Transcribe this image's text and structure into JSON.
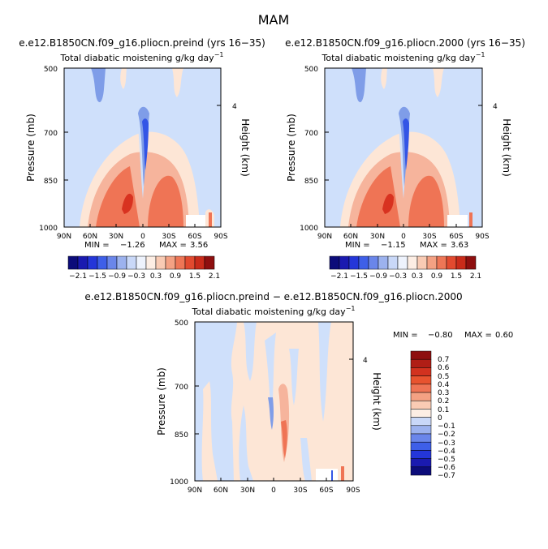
{
  "page_title": "MAM",
  "colors": {
    "neg3": "#0a1fa8",
    "neg2": "#3355e6",
    "neg1": "#7f9de8",
    "neg0": "#cfe0fb",
    "pos0": "#fde6d6",
    "pos1": "#f6b49c",
    "pos2": "#ef7455",
    "pos3": "#d83220"
  },
  "chart_data": [
    {
      "type": "heatmap",
      "id": "preind",
      "title": "e.e12.B1850CN.f09_g16.pliocn.preind (yrs 16−35)",
      "subtitle": "Total diabatic moistening",
      "units": "g/kg day",
      "units_exp": "−1",
      "ylabel": "Pressure (mb)",
      "ylabel_right": "Height (km)",
      "right_ticks": [
        "4"
      ],
      "y_ticks": [
        "500",
        "700",
        "850",
        "1000"
      ],
      "x_ticks": [
        "90N",
        "60N",
        "30N",
        "0",
        "30S",
        "60S",
        "90S"
      ],
      "min_label": "MIN =",
      "min_value": "−1.26",
      "max_label": "MAX =",
      "max_value": "3.56",
      "colorbar_labels": [
        "−2.1",
        "−1.5",
        "−0.9",
        "−0.3",
        "0.3",
        "0.9",
        "1.5",
        "2.1"
      ]
    },
    {
      "type": "heatmap",
      "id": "plio2000",
      "title": "e.e12.B1850CN.f09_g16.pliocn.2000 (yrs 16−35)",
      "subtitle": "Total diabatic moistening",
      "units": "g/kg day",
      "units_exp": "−1",
      "ylabel": "Pressure (mb)",
      "ylabel_right": "Height (km)",
      "right_ticks": [
        "4"
      ],
      "y_ticks": [
        "500",
        "700",
        "850",
        "1000"
      ],
      "x_ticks": [
        "90N",
        "60N",
        "30N",
        "0",
        "30S",
        "60S",
        "90S"
      ],
      "min_label": "MIN =",
      "min_value": "−1.15",
      "max_label": "MAX =",
      "max_value": "3.63",
      "colorbar_labels": [
        "−2.1",
        "−1.5",
        "−0.9",
        "−0.3",
        "0.3",
        "0.9",
        "1.5",
        "2.1"
      ]
    },
    {
      "type": "heatmap",
      "id": "diff",
      "title": "e.e12.B1850CN.f09_g16.pliocn.preind − e.e12.B1850CN.f09_g16.pliocn.2000",
      "subtitle": "Total diabatic moistening",
      "units": "g/kg day",
      "units_exp": "−1",
      "ylabel": "Pressure (mb)",
      "ylabel_right": "Height (km)",
      "right_ticks": [
        "4"
      ],
      "y_ticks": [
        "500",
        "700",
        "850",
        "1000"
      ],
      "x_ticks": [
        "90N",
        "60N",
        "30N",
        "0",
        "30S",
        "60S",
        "90S"
      ],
      "min_label": "MIN =",
      "min_value": "−0.80",
      "max_label": "MAX =",
      "max_value": "0.60",
      "colorbar_labels": [
        "0.7",
        "0.6",
        "0.5",
        "0.4",
        "0.3",
        "0.2",
        "0.1",
        "0",
        "−0.1",
        "−0.2",
        "−0.3",
        "−0.4",
        "−0.5",
        "−0.6",
        "−0.7"
      ]
    }
  ]
}
